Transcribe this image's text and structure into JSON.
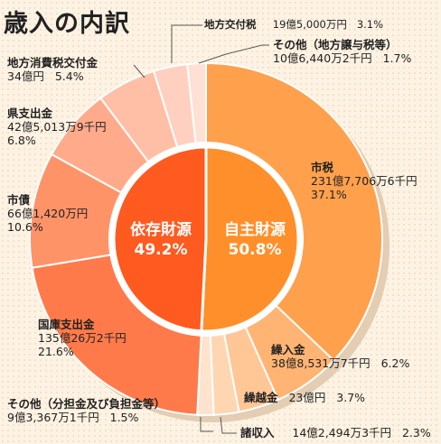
{
  "chart_data": {
    "type": "pie",
    "title": "歳入の内訳",
    "inner": [
      {
        "label": "依存財源",
        "value_label": "49.2%",
        "percent": 49.2,
        "color": "#ff5a1f"
      },
      {
        "label": "自主財源",
        "value_label": "50.8%",
        "percent": 50.8,
        "color": "#ff8f2a"
      }
    ],
    "slices": [
      {
        "name": "市税",
        "amount": "231億7,706万6千円",
        "percent_label": "37.1%",
        "percent": 37.1,
        "color": "#ffa04d"
      },
      {
        "name": "繰入金",
        "amount": "38億8,531万7千円",
        "percent_label": "6.2%",
        "percent": 6.2,
        "color": "#ffb473"
      },
      {
        "name": "繰越金",
        "amount": "23億円",
        "percent_label": "3.7%",
        "percent": 3.7,
        "color": "#ffc696"
      },
      {
        "name": "諸収入",
        "amount": "14億2,494万3千円",
        "percent_label": "2.3%",
        "percent": 2.3,
        "color": "#ffd6b2"
      },
      {
        "name": "その他（分担金及び負担金等）",
        "amount": "9億3,367万1千円",
        "percent_label": "1.5%",
        "percent": 1.5,
        "color": "#ffe3cc"
      },
      {
        "name": "国庫支出金",
        "amount": "135億26万2千円",
        "percent_label": "21.6%",
        "percent": 21.6,
        "color": "#ff7a4a"
      },
      {
        "name": "市債",
        "amount": "66億1,420万円",
        "percent_label": "10.6%",
        "percent": 10.6,
        "color": "#ff9368"
      },
      {
        "name": "県支出金",
        "amount": "42億5,013万9千円",
        "percent_label": "6.8%",
        "percent": 6.8,
        "color": "#ffab8b"
      },
      {
        "name": "地方消費税交付金",
        "amount": "34億円",
        "percent_label": "5.4%",
        "percent": 5.4,
        "color": "#ffbfa6"
      },
      {
        "name": "地方交付税",
        "amount": "19億5,000万円",
        "percent_label": "3.1%",
        "percent": 3.1,
        "color": "#ffd0bf"
      },
      {
        "name": "その他（地方譲与税等）",
        "amount": "10億6,440万2千円",
        "percent_label": "1.7%",
        "percent": 1.7,
        "color": "#ffe0d4"
      }
    ]
  }
}
